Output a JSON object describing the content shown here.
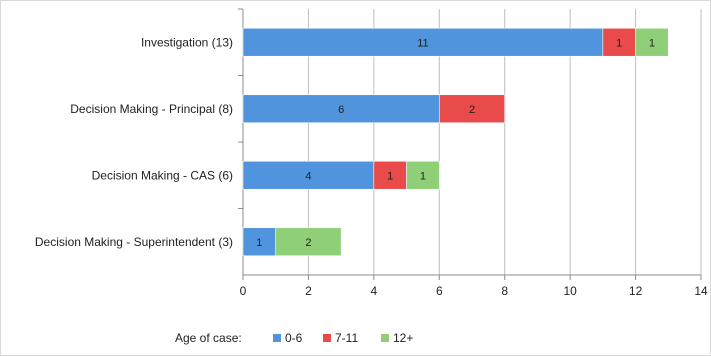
{
  "chart_data": {
    "type": "bar",
    "orientation": "horizontal",
    "stacked": true,
    "categories": [
      "Investigation (13)",
      "Decision Making - Principal (8)",
      "Decision Making - CAS (6)",
      "Decision Making - Superintendent (3)"
    ],
    "series": [
      {
        "name": "0-6",
        "values": [
          11,
          6,
          4,
          1
        ],
        "color": "#4f94dc"
      },
      {
        "name": "7-11",
        "values": [
          1,
          2,
          1,
          0
        ],
        "color": "#e94a4a"
      },
      {
        "name": "12+",
        "values": [
          1,
          0,
          1,
          2
        ],
        "color": "#8fcf78"
      }
    ],
    "title": "",
    "xlabel": "",
    "ylabel": "",
    "xlim": [
      0,
      14
    ],
    "xticks": [
      0,
      2,
      4,
      6,
      8,
      10,
      12,
      14
    ],
    "grid": true,
    "legend": {
      "title": "Age of case:",
      "placement": "bottom"
    }
  }
}
